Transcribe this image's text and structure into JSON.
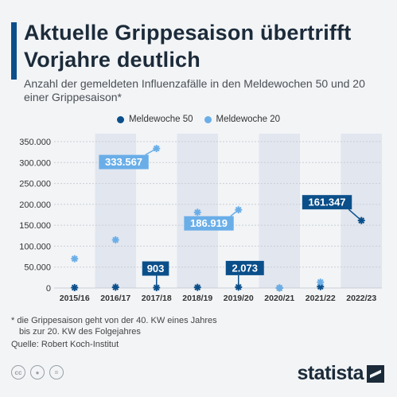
{
  "header": {
    "title": "Aktuelle Grippesaison übertrifft Vorjahre deutlich",
    "subtitle": "Anzahl der gemeldeten Influenzafälle in den Meldewochen 50 und 20 einer Grippesaison*"
  },
  "colors": {
    "week50": "#0b4f8a",
    "week20": "#6aaee8",
    "band": "#e1e6ef",
    "grid": "#c9ced6"
  },
  "chart_data": {
    "type": "scatter",
    "categories": [
      "2015/16",
      "2016/17",
      "2017/18",
      "2018/19",
      "2019/20",
      "2020/21",
      "2021/22",
      "2022/23"
    ],
    "series": [
      {
        "name": "Meldewoche 50",
        "values": [
          900,
          1900,
          903,
          1500,
          2073,
          60,
          3300,
          161347
        ]
      },
      {
        "name": "Meldewoche 20",
        "values": [
          70000,
          115000,
          333567,
          181000,
          186919,
          200,
          14000,
          null
        ]
      }
    ],
    "yticks": [
      "0",
      "50.000",
      "100.000",
      "150.000",
      "200.000",
      "250.000",
      "300.000",
      "350.000"
    ],
    "ylim": [
      0,
      350000
    ],
    "grid": true,
    "legend_position": "top-center",
    "annotations": [
      {
        "series": 1,
        "index": 2,
        "text": "333.567"
      },
      {
        "series": 0,
        "index": 2,
        "text": "903"
      },
      {
        "series": 1,
        "index": 4,
        "text": "186.919"
      },
      {
        "series": 0,
        "index": 4,
        "text": "2.073"
      },
      {
        "series": 0,
        "index": 7,
        "text": "161.347"
      }
    ]
  },
  "footnote": {
    "line1": "* die Grippesaison geht von der 40. KW eines Jahres",
    "line2": "bis zur 20. KW des Folgejahres"
  },
  "source": "Quelle: Robert Koch-Institut",
  "license_icons": [
    "cc-icon",
    "by-icon",
    "nd-icon"
  ],
  "brand": "statista"
}
